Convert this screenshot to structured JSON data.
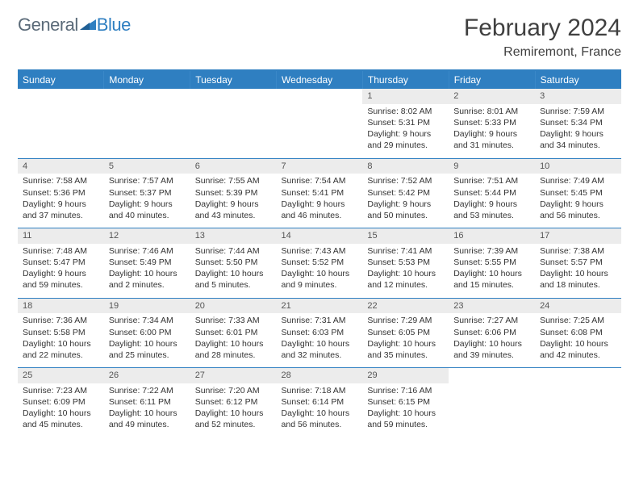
{
  "logo": {
    "text1": "General",
    "text2": "Blue"
  },
  "title": {
    "month": "February 2024",
    "location": "Remiremont, France"
  },
  "colors": {
    "header_bg": "#2f7fc1",
    "header_text": "#ffffff",
    "daynum_bg": "#ececec",
    "rule": "#2f7fc1",
    "logo_gray": "#5a6a78",
    "logo_blue": "#2f7fc1"
  },
  "calendar": {
    "day_headers": [
      "Sunday",
      "Monday",
      "Tuesday",
      "Wednesday",
      "Thursday",
      "Friday",
      "Saturday"
    ],
    "weeks": [
      [
        {
          "empty": true
        },
        {
          "empty": true
        },
        {
          "empty": true
        },
        {
          "empty": true
        },
        {
          "num": "1",
          "sunrise": "Sunrise: 8:02 AM",
          "sunset": "Sunset: 5:31 PM",
          "daylight": "Daylight: 9 hours and 29 minutes."
        },
        {
          "num": "2",
          "sunrise": "Sunrise: 8:01 AM",
          "sunset": "Sunset: 5:33 PM",
          "daylight": "Daylight: 9 hours and 31 minutes."
        },
        {
          "num": "3",
          "sunrise": "Sunrise: 7:59 AM",
          "sunset": "Sunset: 5:34 PM",
          "daylight": "Daylight: 9 hours and 34 minutes."
        }
      ],
      [
        {
          "num": "4",
          "sunrise": "Sunrise: 7:58 AM",
          "sunset": "Sunset: 5:36 PM",
          "daylight": "Daylight: 9 hours and 37 minutes."
        },
        {
          "num": "5",
          "sunrise": "Sunrise: 7:57 AM",
          "sunset": "Sunset: 5:37 PM",
          "daylight": "Daylight: 9 hours and 40 minutes."
        },
        {
          "num": "6",
          "sunrise": "Sunrise: 7:55 AM",
          "sunset": "Sunset: 5:39 PM",
          "daylight": "Daylight: 9 hours and 43 minutes."
        },
        {
          "num": "7",
          "sunrise": "Sunrise: 7:54 AM",
          "sunset": "Sunset: 5:41 PM",
          "daylight": "Daylight: 9 hours and 46 minutes."
        },
        {
          "num": "8",
          "sunrise": "Sunrise: 7:52 AM",
          "sunset": "Sunset: 5:42 PM",
          "daylight": "Daylight: 9 hours and 50 minutes."
        },
        {
          "num": "9",
          "sunrise": "Sunrise: 7:51 AM",
          "sunset": "Sunset: 5:44 PM",
          "daylight": "Daylight: 9 hours and 53 minutes."
        },
        {
          "num": "10",
          "sunrise": "Sunrise: 7:49 AM",
          "sunset": "Sunset: 5:45 PM",
          "daylight": "Daylight: 9 hours and 56 minutes."
        }
      ],
      [
        {
          "num": "11",
          "sunrise": "Sunrise: 7:48 AM",
          "sunset": "Sunset: 5:47 PM",
          "daylight": "Daylight: 9 hours and 59 minutes."
        },
        {
          "num": "12",
          "sunrise": "Sunrise: 7:46 AM",
          "sunset": "Sunset: 5:49 PM",
          "daylight": "Daylight: 10 hours and 2 minutes."
        },
        {
          "num": "13",
          "sunrise": "Sunrise: 7:44 AM",
          "sunset": "Sunset: 5:50 PM",
          "daylight": "Daylight: 10 hours and 5 minutes."
        },
        {
          "num": "14",
          "sunrise": "Sunrise: 7:43 AM",
          "sunset": "Sunset: 5:52 PM",
          "daylight": "Daylight: 10 hours and 9 minutes."
        },
        {
          "num": "15",
          "sunrise": "Sunrise: 7:41 AM",
          "sunset": "Sunset: 5:53 PM",
          "daylight": "Daylight: 10 hours and 12 minutes."
        },
        {
          "num": "16",
          "sunrise": "Sunrise: 7:39 AM",
          "sunset": "Sunset: 5:55 PM",
          "daylight": "Daylight: 10 hours and 15 minutes."
        },
        {
          "num": "17",
          "sunrise": "Sunrise: 7:38 AM",
          "sunset": "Sunset: 5:57 PM",
          "daylight": "Daylight: 10 hours and 18 minutes."
        }
      ],
      [
        {
          "num": "18",
          "sunrise": "Sunrise: 7:36 AM",
          "sunset": "Sunset: 5:58 PM",
          "daylight": "Daylight: 10 hours and 22 minutes."
        },
        {
          "num": "19",
          "sunrise": "Sunrise: 7:34 AM",
          "sunset": "Sunset: 6:00 PM",
          "daylight": "Daylight: 10 hours and 25 minutes."
        },
        {
          "num": "20",
          "sunrise": "Sunrise: 7:33 AM",
          "sunset": "Sunset: 6:01 PM",
          "daylight": "Daylight: 10 hours and 28 minutes."
        },
        {
          "num": "21",
          "sunrise": "Sunrise: 7:31 AM",
          "sunset": "Sunset: 6:03 PM",
          "daylight": "Daylight: 10 hours and 32 minutes."
        },
        {
          "num": "22",
          "sunrise": "Sunrise: 7:29 AM",
          "sunset": "Sunset: 6:05 PM",
          "daylight": "Daylight: 10 hours and 35 minutes."
        },
        {
          "num": "23",
          "sunrise": "Sunrise: 7:27 AM",
          "sunset": "Sunset: 6:06 PM",
          "daylight": "Daylight: 10 hours and 39 minutes."
        },
        {
          "num": "24",
          "sunrise": "Sunrise: 7:25 AM",
          "sunset": "Sunset: 6:08 PM",
          "daylight": "Daylight: 10 hours and 42 minutes."
        }
      ],
      [
        {
          "num": "25",
          "sunrise": "Sunrise: 7:23 AM",
          "sunset": "Sunset: 6:09 PM",
          "daylight": "Daylight: 10 hours and 45 minutes."
        },
        {
          "num": "26",
          "sunrise": "Sunrise: 7:22 AM",
          "sunset": "Sunset: 6:11 PM",
          "daylight": "Daylight: 10 hours and 49 minutes."
        },
        {
          "num": "27",
          "sunrise": "Sunrise: 7:20 AM",
          "sunset": "Sunset: 6:12 PM",
          "daylight": "Daylight: 10 hours and 52 minutes."
        },
        {
          "num": "28",
          "sunrise": "Sunrise: 7:18 AM",
          "sunset": "Sunset: 6:14 PM",
          "daylight": "Daylight: 10 hours and 56 minutes."
        },
        {
          "num": "29",
          "sunrise": "Sunrise: 7:16 AM",
          "sunset": "Sunset: 6:15 PM",
          "daylight": "Daylight: 10 hours and 59 minutes."
        },
        {
          "empty": true
        },
        {
          "empty": true
        }
      ]
    ]
  }
}
